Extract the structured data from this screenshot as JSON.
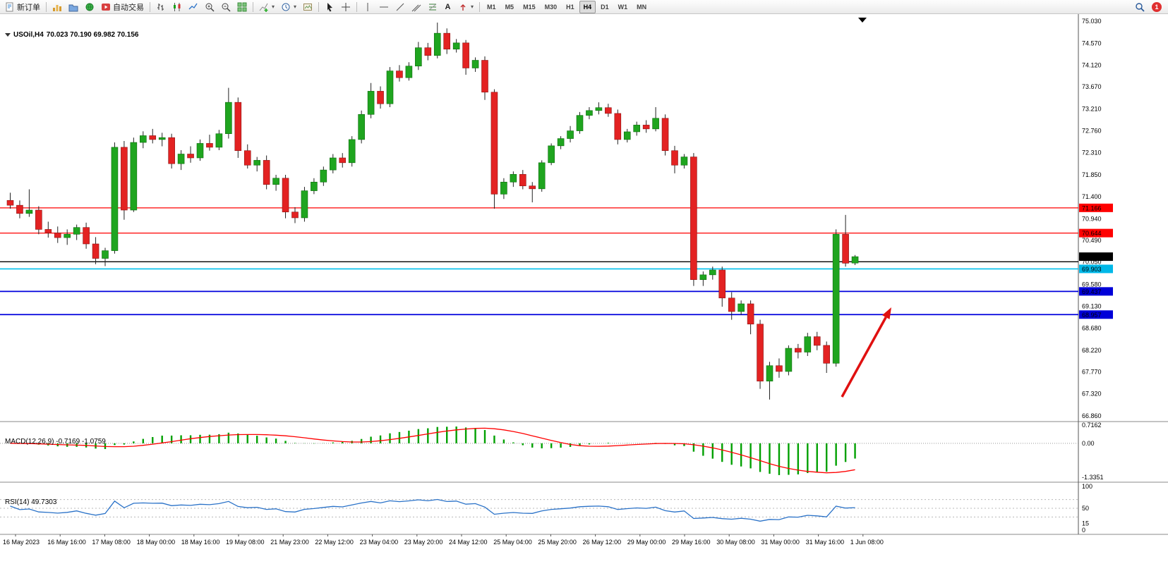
{
  "toolbar": {
    "new_order_label": "新订单",
    "auto_trading_label": "自动交易",
    "text_tool_label": "A",
    "timeframes": [
      "M1",
      "M5",
      "M15",
      "M30",
      "H1",
      "H4",
      "D1",
      "W1",
      "MN"
    ],
    "active_timeframe": "H4",
    "notification_count": "1"
  },
  "chart": {
    "title_symbol": "USOil,H4",
    "title_ohlc": "70.023 70.190 69.982 70.156",
    "macd_label": "MACD(12,26,9) -0.7169 -1.0759",
    "rsi_label": "RSI(14) 49.7303"
  },
  "chart_data": {
    "type": "candlestick",
    "symbol": "USOil",
    "timeframe": "H4",
    "up_color": "#1fa51f",
    "down_color": "#e32222",
    "price_axis": [
      "75.030",
      "74.570",
      "74.120",
      "73.670",
      "73.210",
      "72.760",
      "72.310",
      "71.850",
      "71.400",
      "70.940",
      "70.490",
      "70.050",
      "69.580",
      "69.130",
      "68.680",
      "68.220",
      "67.770",
      "67.320",
      "66.860"
    ],
    "price_axis_top": 75.03,
    "price_axis_bottom": 66.86,
    "time_axis": [
      "16 May 2023",
      "16 May 16:00",
      "17 May 08:00",
      "18 May 00:00",
      "18 May 16:00",
      "19 May 08:00",
      "21 May 23:00",
      "22 May 12:00",
      "23 May 04:00",
      "23 May 20:00",
      "24 May 12:00",
      "25 May 04:00",
      "25 May 20:00",
      "26 May 12:00",
      "29 May 00:00",
      "29 May 16:00",
      "30 May 08:00",
      "31 May 00:00",
      "31 May 16:00",
      "1 Jun 08:00"
    ],
    "levels": [
      {
        "price": 71.166,
        "color": "#ff0000",
        "width": 1.2
      },
      {
        "price": 70.644,
        "color": "#ff0000",
        "width": 1.2
      },
      {
        "price": 70.05,
        "color": "#000000",
        "width": 1.4
      },
      {
        "price": 69.903,
        "color": "#00c0ee",
        "width": 1.6
      },
      {
        "price": 69.437,
        "color": "#0000dd",
        "width": 1.8
      },
      {
        "price": 68.957,
        "color": "#0000dd",
        "width": 1.8
      }
    ],
    "price_tags": [
      {
        "text": "71.166",
        "price": 71.166,
        "bg": "#ff0000"
      },
      {
        "text": "70.644",
        "price": 70.644,
        "bg": "#ff0000"
      },
      {
        "text": "70.156",
        "price": 70.156,
        "bg": "#000000"
      },
      {
        "text": "69.903",
        "price": 69.903,
        "bg": "#00b8e8"
      },
      {
        "text": "69.437",
        "price": 69.437,
        "bg": "#0000d8"
      },
      {
        "text": "68.957",
        "price": 68.957,
        "bg": "#0000d8"
      }
    ],
    "arrow": {
      "from": [
        1193,
        543
      ],
      "to": [
        1263,
        416
      ],
      "color": "#e01010"
    },
    "macd": {
      "fast": 12,
      "slow": 26,
      "signal": 9,
      "value": -0.7169,
      "signal_value": -1.0759,
      "axis": [
        {
          "text": "0.7162",
          "value": 0.7162
        },
        {
          "text": "0.00",
          "value": 0
        },
        {
          "text": "-1.3351",
          "value": -1.3351
        }
      ],
      "hist_color": "#00a000",
      "signal_color": "#ff0000"
    },
    "rsi": {
      "period": 14,
      "value": 49.7303,
      "axis": [
        {
          "text": "100",
          "value": 100
        },
        {
          "text": "50",
          "value": 50
        },
        {
          "text": "15",
          "value": 15
        },
        {
          "text": "0",
          "value": 0
        }
      ],
      "line_color": "#2a72c8"
    },
    "ohlc": [
      [
        71.32,
        71.48,
        71.15,
        71.22
      ],
      [
        71.22,
        71.32,
        70.95,
        71.05
      ],
      [
        71.05,
        71.55,
        70.98,
        71.12
      ],
      [
        71.12,
        71.2,
        70.62,
        70.72
      ],
      [
        70.72,
        70.88,
        70.55,
        70.65
      ],
      [
        70.65,
        70.78,
        70.44,
        70.55
      ],
      [
        70.55,
        70.72,
        70.4,
        70.62
      ],
      [
        70.62,
        70.82,
        70.5,
        70.76
      ],
      [
        70.76,
        70.86,
        70.32,
        70.42
      ],
      [
        70.42,
        70.56,
        70.0,
        70.12
      ],
      [
        70.12,
        70.34,
        69.96,
        70.28
      ],
      [
        70.28,
        72.52,
        70.22,
        72.42
      ],
      [
        72.42,
        72.55,
        70.92,
        71.12
      ],
      [
        71.12,
        72.62,
        71.08,
        72.52
      ],
      [
        72.52,
        72.75,
        72.4,
        72.66
      ],
      [
        72.66,
        72.8,
        72.5,
        72.58
      ],
      [
        72.58,
        72.72,
        72.44,
        72.62
      ],
      [
        72.62,
        72.7,
        71.98,
        72.08
      ],
      [
        72.08,
        72.36,
        71.95,
        72.28
      ],
      [
        72.28,
        72.44,
        72.1,
        72.2
      ],
      [
        72.2,
        72.58,
        72.14,
        72.5
      ],
      [
        72.5,
        72.68,
        72.35,
        72.42
      ],
      [
        72.42,
        72.78,
        72.36,
        72.7
      ],
      [
        72.7,
        73.65,
        72.6,
        73.35
      ],
      [
        73.35,
        73.45,
        72.2,
        72.35
      ],
      [
        72.35,
        72.48,
        71.98,
        72.05
      ],
      [
        72.05,
        72.22,
        71.92,
        72.15
      ],
      [
        72.15,
        72.25,
        71.55,
        71.65
      ],
      [
        71.65,
        71.85,
        71.52,
        71.78
      ],
      [
        71.78,
        71.85,
        70.95,
        71.08
      ],
      [
        71.08,
        71.18,
        70.85,
        70.96
      ],
      [
        70.96,
        71.6,
        70.88,
        71.52
      ],
      [
        71.52,
        71.78,
        71.45,
        71.7
      ],
      [
        71.7,
        72.02,
        71.62,
        71.95
      ],
      [
        71.95,
        72.28,
        71.88,
        72.2
      ],
      [
        72.2,
        72.3,
        72.0,
        72.1
      ],
      [
        72.1,
        72.65,
        72.02,
        72.58
      ],
      [
        72.58,
        73.18,
        72.5,
        73.1
      ],
      [
        73.1,
        73.75,
        73.02,
        73.58
      ],
      [
        73.58,
        73.68,
        73.22,
        73.32
      ],
      [
        73.32,
        74.08,
        73.25,
        74.0
      ],
      [
        74.0,
        74.12,
        73.78,
        73.86
      ],
      [
        73.86,
        74.18,
        73.8,
        74.1
      ],
      [
        74.1,
        74.6,
        74.02,
        74.48
      ],
      [
        74.48,
        74.58,
        74.22,
        74.32
      ],
      [
        74.32,
        75.0,
        74.26,
        74.78
      ],
      [
        74.78,
        74.88,
        74.35,
        74.45
      ],
      [
        74.45,
        74.66,
        74.38,
        74.58
      ],
      [
        74.58,
        74.64,
        73.92,
        74.06
      ],
      [
        74.06,
        74.28,
        73.98,
        74.22
      ],
      [
        74.22,
        74.3,
        73.4,
        73.56
      ],
      [
        73.56,
        73.62,
        71.15,
        71.45
      ],
      [
        71.45,
        71.78,
        71.35,
        71.7
      ],
      [
        71.7,
        71.92,
        71.6,
        71.86
      ],
      [
        71.86,
        71.95,
        71.55,
        71.62
      ],
      [
        71.62,
        71.7,
        71.28,
        71.56
      ],
      [
        71.56,
        72.15,
        71.5,
        72.1
      ],
      [
        72.1,
        72.5,
        72.05,
        72.45
      ],
      [
        72.45,
        72.65,
        72.38,
        72.6
      ],
      [
        72.6,
        72.86,
        72.52,
        72.76
      ],
      [
        72.76,
        73.15,
        72.7,
        73.08
      ],
      [
        73.08,
        73.25,
        73.0,
        73.18
      ],
      [
        73.18,
        73.35,
        73.1,
        73.24
      ],
      [
        73.24,
        73.32,
        73.05,
        73.12
      ],
      [
        73.12,
        73.2,
        72.48,
        72.58
      ],
      [
        72.58,
        72.8,
        72.52,
        72.74
      ],
      [
        72.74,
        72.95,
        72.66,
        72.88
      ],
      [
        72.88,
        72.98,
        72.72,
        72.8
      ],
      [
        72.8,
        73.25,
        72.75,
        73.02
      ],
      [
        73.02,
        73.1,
        72.25,
        72.35
      ],
      [
        72.35,
        72.45,
        71.88,
        72.05
      ],
      [
        72.05,
        72.28,
        71.98,
        72.22
      ],
      [
        72.22,
        72.3,
        69.55,
        69.68
      ],
      [
        69.68,
        69.85,
        69.55,
        69.78
      ],
      [
        69.78,
        69.95,
        69.68,
        69.88
      ],
      [
        69.88,
        69.95,
        69.12,
        69.3
      ],
      [
        69.3,
        69.42,
        68.85,
        69.02
      ],
      [
        69.02,
        69.25,
        68.95,
        69.18
      ],
      [
        69.18,
        69.25,
        68.55,
        68.76
      ],
      [
        68.76,
        68.85,
        67.42,
        67.58
      ],
      [
        67.58,
        67.98,
        67.2,
        67.9
      ],
      [
        67.9,
        68.05,
        67.65,
        67.78
      ],
      [
        67.78,
        68.32,
        67.7,
        68.26
      ],
      [
        68.26,
        68.35,
        68.05,
        68.18
      ],
      [
        68.18,
        68.58,
        68.1,
        68.5
      ],
      [
        68.5,
        68.6,
        68.22,
        68.32
      ],
      [
        68.32,
        68.4,
        67.75,
        67.95
      ],
      [
        67.95,
        70.72,
        67.88,
        70.62
      ],
      [
        70.62,
        71.02,
        69.95,
        70.02
      ],
      [
        70.023,
        70.19,
        69.982,
        70.156
      ]
    ]
  }
}
